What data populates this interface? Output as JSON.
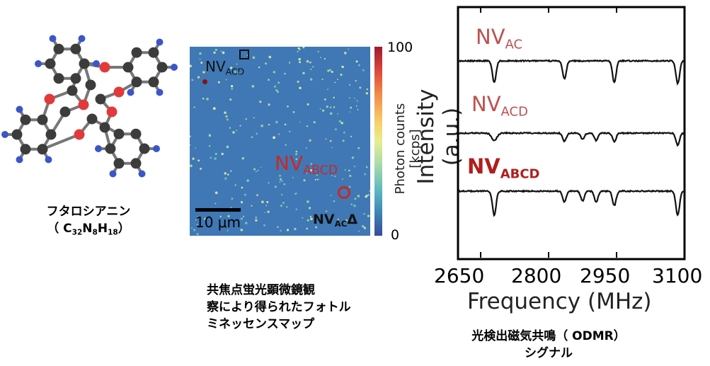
{
  "molecule": {
    "name": "フタロシアニン",
    "formula_parts": [
      "（ C",
      "32",
      "N",
      "8",
      "H",
      "18",
      "）"
    ],
    "atom_colors": {
      "carbon": "#3c3c3c",
      "nitrogen": "#e23a3a",
      "hydrogen": "#3a56c8",
      "bond": "#777777"
    }
  },
  "pl_map": {
    "caption_lines": [
      "共焦点蛍光顕微鏡観",
      "察により得られたフォトル",
      "ミネッセンスマップ"
    ],
    "colorbar_label": "Photon counts [kcps]",
    "colorbar_ticks": [
      "100",
      "0"
    ],
    "scalebar_label": "10 μm",
    "labels": {
      "acd": {
        "main": "NV",
        "sub": "ACD"
      },
      "abcd": {
        "main": "NV",
        "sub": "ABCD"
      },
      "ac": {
        "main": "NV",
        "sub": "AC",
        "suffix": "Δ"
      }
    },
    "colors": {
      "background": "#3f78b4",
      "accent_red": "#c82828"
    }
  },
  "odmr": {
    "caption_lines": [
      "光検出磁気共鳴（ ODMR）",
      "シグナル"
    ],
    "ylabel": "Intensity (a.u.)",
    "xlabel": "Frequency (MHz)",
    "xticks": [
      "2650",
      "2800",
      "2950",
      "3100"
    ],
    "traces": [
      {
        "label_main": "NV",
        "label_sub": "AC",
        "color": "#c05050",
        "bold": false
      },
      {
        "label_main": "NV",
        "label_sub": "ACD",
        "color": "#c05050",
        "bold": false
      },
      {
        "label_main": "NV",
        "label_sub": "ABCD",
        "color": "#b01e1e",
        "bold": true
      }
    ]
  },
  "chart_data": {
    "type": "line",
    "xlabel": "Frequency (MHz)",
    "ylabel": "Intensity (a.u.)",
    "xlim": [
      2600,
      3100
    ],
    "x_ticks": [
      2650,
      2800,
      2950,
      3100
    ],
    "series": [
      {
        "name": "NVAC",
        "dips": [
          {
            "x": 2680,
            "depth": 0.9,
            "width": 4
          },
          {
            "x": 2835,
            "depth": 0.75,
            "width": 4
          },
          {
            "x": 2945,
            "depth": 0.9,
            "width": 4
          },
          {
            "x": 3085,
            "depth": 0.95,
            "width": 4
          }
        ]
      },
      {
        "name": "NVACD",
        "dips": [
          {
            "x": 2680,
            "depth": 0.3,
            "width": 6
          },
          {
            "x": 2835,
            "depth": 0.35,
            "width": 4
          },
          {
            "x": 2875,
            "depth": 0.25,
            "width": 4
          },
          {
            "x": 2905,
            "depth": 0.3,
            "width": 4
          },
          {
            "x": 2945,
            "depth": 0.35,
            "width": 4
          },
          {
            "x": 3085,
            "depth": 0.5,
            "width": 4
          }
        ]
      },
      {
        "name": "NVABCD",
        "dips": [
          {
            "x": 2680,
            "depth": 1.0,
            "width": 4
          },
          {
            "x": 2835,
            "depth": 0.45,
            "width": 4
          },
          {
            "x": 2875,
            "depth": 0.4,
            "width": 4
          },
          {
            "x": 2905,
            "depth": 0.45,
            "width": 4
          },
          {
            "x": 2945,
            "depth": 0.6,
            "width": 4
          },
          {
            "x": 3085,
            "depth": 1.0,
            "width": 4
          }
        ]
      }
    ]
  }
}
